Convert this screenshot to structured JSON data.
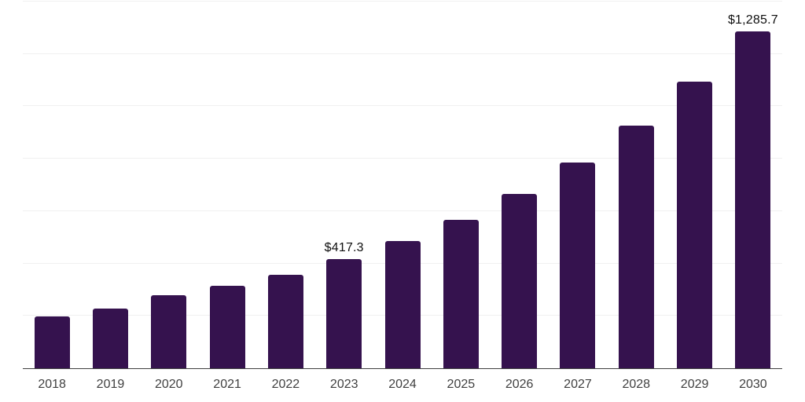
{
  "chart_data": {
    "type": "bar",
    "title": "",
    "xlabel": "",
    "ylabel": "",
    "categories": [
      "2018",
      "2019",
      "2020",
      "2021",
      "2022",
      "2023",
      "2024",
      "2025",
      "2026",
      "2027",
      "2028",
      "2029",
      "2030"
    ],
    "values": [
      199,
      229,
      280,
      316,
      358,
      417.3,
      486,
      568,
      667,
      784,
      925,
      1093,
      1285.7
    ],
    "data_labels": {
      "2023": "$417.3",
      "2030": "$1,285.7"
    },
    "ylim": [
      0,
      1400
    ],
    "gridline_step": 200,
    "grid": true,
    "legend": false
  },
  "colors": {
    "bar": "#35124E",
    "gridline": "#F0F0F0",
    "axis": "#404040",
    "x_label": "#404040",
    "value_label": "#0F0F0F",
    "background": "#FFFFFF"
  }
}
